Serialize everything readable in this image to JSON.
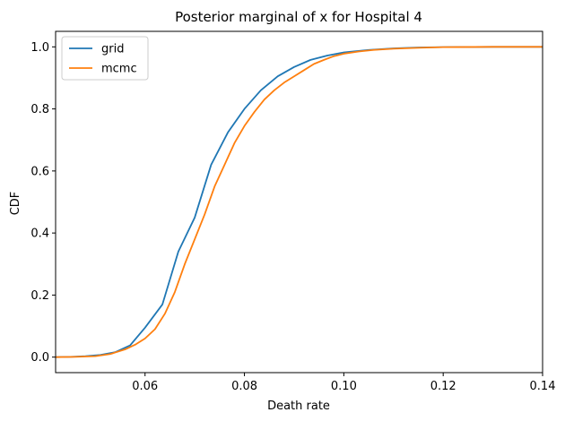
{
  "chart_data": {
    "type": "line",
    "title": "Posterior marginal of x for Hospital 4",
    "xlabel": "Death rate",
    "ylabel": "CDF",
    "xlim": [
      0.042,
      0.14
    ],
    "ylim": [
      -0.05,
      1.05
    ],
    "xticks": [
      0.06,
      0.08,
      0.1,
      0.12,
      0.14
    ],
    "xtick_labels": [
      "0.06",
      "0.08",
      "0.10",
      "0.12",
      "0.14"
    ],
    "yticks": [
      0.0,
      0.2,
      0.4,
      0.6,
      0.8,
      1.0
    ],
    "ytick_labels": [
      "0.0",
      "0.2",
      "0.4",
      "0.6",
      "0.8",
      "1.0"
    ],
    "grid": false,
    "legend": {
      "position": "top-left"
    },
    "series": [
      {
        "name": "grid",
        "color": "#1f77b4",
        "x": [
          0.042,
          0.045,
          0.048,
          0.051,
          0.054,
          0.057,
          0.06,
          0.0635,
          0.0667,
          0.07,
          0.0733,
          0.0767,
          0.08,
          0.0833,
          0.0867,
          0.09,
          0.0933,
          0.0967,
          0.1,
          0.105,
          0.11,
          0.115,
          0.12,
          0.13,
          0.14
        ],
        "y": [
          0.0,
          0.001,
          0.003,
          0.007,
          0.016,
          0.038,
          0.095,
          0.17,
          0.34,
          0.45,
          0.62,
          0.725,
          0.8,
          0.86,
          0.905,
          0.935,
          0.958,
          0.972,
          0.982,
          0.99,
          0.995,
          0.998,
          0.999,
          1.0,
          1.0
        ]
      },
      {
        "name": "mcmc",
        "color": "#ff7f0e",
        "x": [
          0.042,
          0.046,
          0.05,
          0.053,
          0.056,
          0.058,
          0.06,
          0.062,
          0.064,
          0.066,
          0.068,
          0.07,
          0.072,
          0.074,
          0.076,
          0.078,
          0.08,
          0.082,
          0.084,
          0.086,
          0.088,
          0.09,
          0.092,
          0.094,
          0.096,
          0.098,
          0.1,
          0.103,
          0.106,
          0.11,
          0.115,
          0.12,
          0.13,
          0.14
        ],
        "y": [
          0.0,
          0.001,
          0.003,
          0.01,
          0.025,
          0.04,
          0.06,
          0.09,
          0.14,
          0.21,
          0.3,
          0.38,
          0.46,
          0.55,
          0.62,
          0.69,
          0.745,
          0.79,
          0.83,
          0.86,
          0.885,
          0.905,
          0.925,
          0.945,
          0.958,
          0.97,
          0.978,
          0.985,
          0.99,
          0.994,
          0.997,
          0.999,
          1.0,
          1.0
        ]
      }
    ]
  }
}
